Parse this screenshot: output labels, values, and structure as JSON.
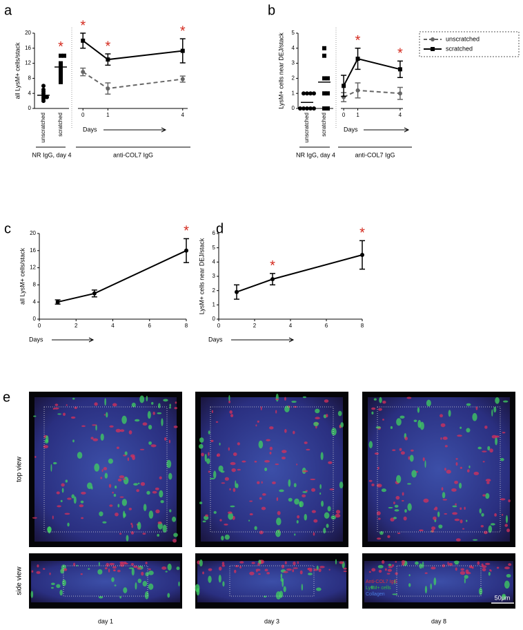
{
  "chart_data": [
    {
      "type": "strip",
      "panel": "a",
      "y_label": "all LysM+ cells/stack",
      "categories": [
        "unscratched",
        "scratched"
      ],
      "groups": [
        {
          "marker": "circle",
          "values": [
            6,
            5,
            4.5,
            4,
            3.5,
            3,
            3,
            2.5,
            2
          ]
        },
        {
          "marker": "square",
          "values": [
            14,
            14,
            12,
            11,
            10,
            9,
            8,
            7
          ]
        }
      ],
      "means": [
        3.5,
        11
      ],
      "significant": [
        false,
        true
      ],
      "significance_label": "*",
      "significance_color": "#d42a1e",
      "group_label": "NR IgG, day 4",
      "ylim": [
        0,
        20
      ],
      "yticks": [
        0,
        4,
        8,
        12,
        16,
        20
      ],
      "color": "#000000"
    },
    {
      "type": "line",
      "x_label": "Days",
      "group_label": "anti-COL7 IgG",
      "x": [
        0,
        1,
        4
      ],
      "xlim": [
        -0.2,
        4.2
      ],
      "xticks": [
        0,
        1,
        4
      ],
      "ylim": [
        0,
        20
      ],
      "series": [
        {
          "color": "#666666",
          "dash": true,
          "marker": "circle",
          "values": [
            9.7,
            5.3,
            7.8
          ],
          "errors": [
            1,
            1.5,
            0.8
          ],
          "significant": [
            false,
            false,
            false
          ]
        },
        {
          "color": "#000000",
          "dash": false,
          "marker": "square",
          "values": [
            18,
            13,
            15.3
          ],
          "errors": [
            2,
            1.5,
            3.2
          ],
          "significant": [
            true,
            true,
            true
          ]
        }
      ],
      "significance_label": "*",
      "significance_color": "#d42a1e"
    },
    {
      "type": "strip",
      "panel": "b",
      "y_label": "LysM+ cells near DEJ/stack",
      "categories": [
        "unscratched",
        "scratched"
      ],
      "groups": [
        {
          "marker": "circle",
          "values": [
            1,
            1,
            1,
            1,
            0,
            0,
            0,
            0,
            0
          ]
        },
        {
          "marker": "square",
          "values": [
            4,
            3.5,
            2,
            2,
            1,
            1,
            0,
            0
          ]
        }
      ],
      "means": [
        0.4,
        1.75
      ],
      "significant": [
        false,
        false
      ],
      "significance_label": "*",
      "significance_color": "#d42a1e",
      "group_label": "NR IgG, day 4",
      "ylim": [
        0,
        5
      ],
      "yticks": [
        0,
        1,
        2,
        3,
        4,
        5
      ],
      "color": "#000000"
    },
    {
      "type": "line",
      "x_label": "Days",
      "group_label": "anti-COL7 IgG",
      "x": [
        0,
        1,
        4
      ],
      "xlim": [
        -0.2,
        4.2
      ],
      "xticks": [
        0,
        1,
        4
      ],
      "ylim": [
        0,
        5
      ],
      "series": [
        {
          "color": "#666666",
          "dash": true,
          "marker": "circle",
          "values": [
            0.75,
            1.2,
            1.0
          ],
          "errors": [
            0.3,
            0.5,
            0.4
          ],
          "significant": [
            false,
            false,
            false
          ]
        },
        {
          "color": "#000000",
          "dash": false,
          "marker": "square",
          "values": [
            1.5,
            3.3,
            2.6
          ],
          "errors": [
            0.7,
            0.7,
            0.55
          ],
          "significant": [
            false,
            true,
            true
          ]
        }
      ],
      "significance_label": "*",
      "significance_color": "#d42a1e"
    },
    {
      "type": "line",
      "panel": "c",
      "y_label": "all LysM+ cells/stack",
      "x_label": "Days",
      "x": [
        1,
        3,
        8
      ],
      "xlim": [
        0,
        8
      ],
      "xticks": [
        0,
        2,
        4,
        6,
        8
      ],
      "ylim": [
        0,
        20
      ],
      "yticks": [
        0,
        4,
        8,
        12,
        16,
        20
      ],
      "series": [
        {
          "color": "#000000",
          "dash": false,
          "marker": "circle",
          "values": [
            4,
            6,
            16
          ],
          "errors": [
            0.5,
            0.8,
            2.8
          ],
          "significant": [
            false,
            false,
            true
          ]
        }
      ],
      "significance_label": "*",
      "significance_color": "#d42a1e"
    },
    {
      "type": "line",
      "panel": "d",
      "y_label": "LysM+ cells near DEJ/stack",
      "x_label": "Days",
      "x": [
        1,
        3,
        8
      ],
      "xlim": [
        0,
        8
      ],
      "xticks": [
        0,
        2,
        4,
        6,
        8
      ],
      "ylim": [
        0,
        6
      ],
      "yticks": [
        0,
        1,
        2,
        3,
        4,
        5,
        6
      ],
      "series": [
        {
          "color": "#000000",
          "dash": false,
          "marker": "circle",
          "values": [
            1.9,
            2.8,
            4.5
          ],
          "errors": [
            0.5,
            0.4,
            1.0
          ],
          "significant": [
            false,
            true,
            true
          ]
        }
      ],
      "significance_label": "*",
      "significance_color": "#d42a1e"
    }
  ],
  "legend": {
    "entries": [
      {
        "name": "unscratched",
        "marker": "circle",
        "color": "#666666",
        "dash": true
      },
      {
        "name": "scratched",
        "marker": "square",
        "color": "#000000",
        "dash": false
      }
    ]
  },
  "figure_e": {
    "panel": "e",
    "row_labels": [
      "top view",
      "side view"
    ],
    "column_labels": [
      "day 1",
      "day 3",
      "day 8"
    ],
    "channel_legend": [
      {
        "text": "Anti-COL7 IgG",
        "color": "#e0303a"
      },
      {
        "text": "LysM+ cells",
        "color": "#30c040"
      },
      {
        "text": "Collagen",
        "color": "#4a7de0"
      }
    ],
    "scale_bar": "50μm"
  }
}
